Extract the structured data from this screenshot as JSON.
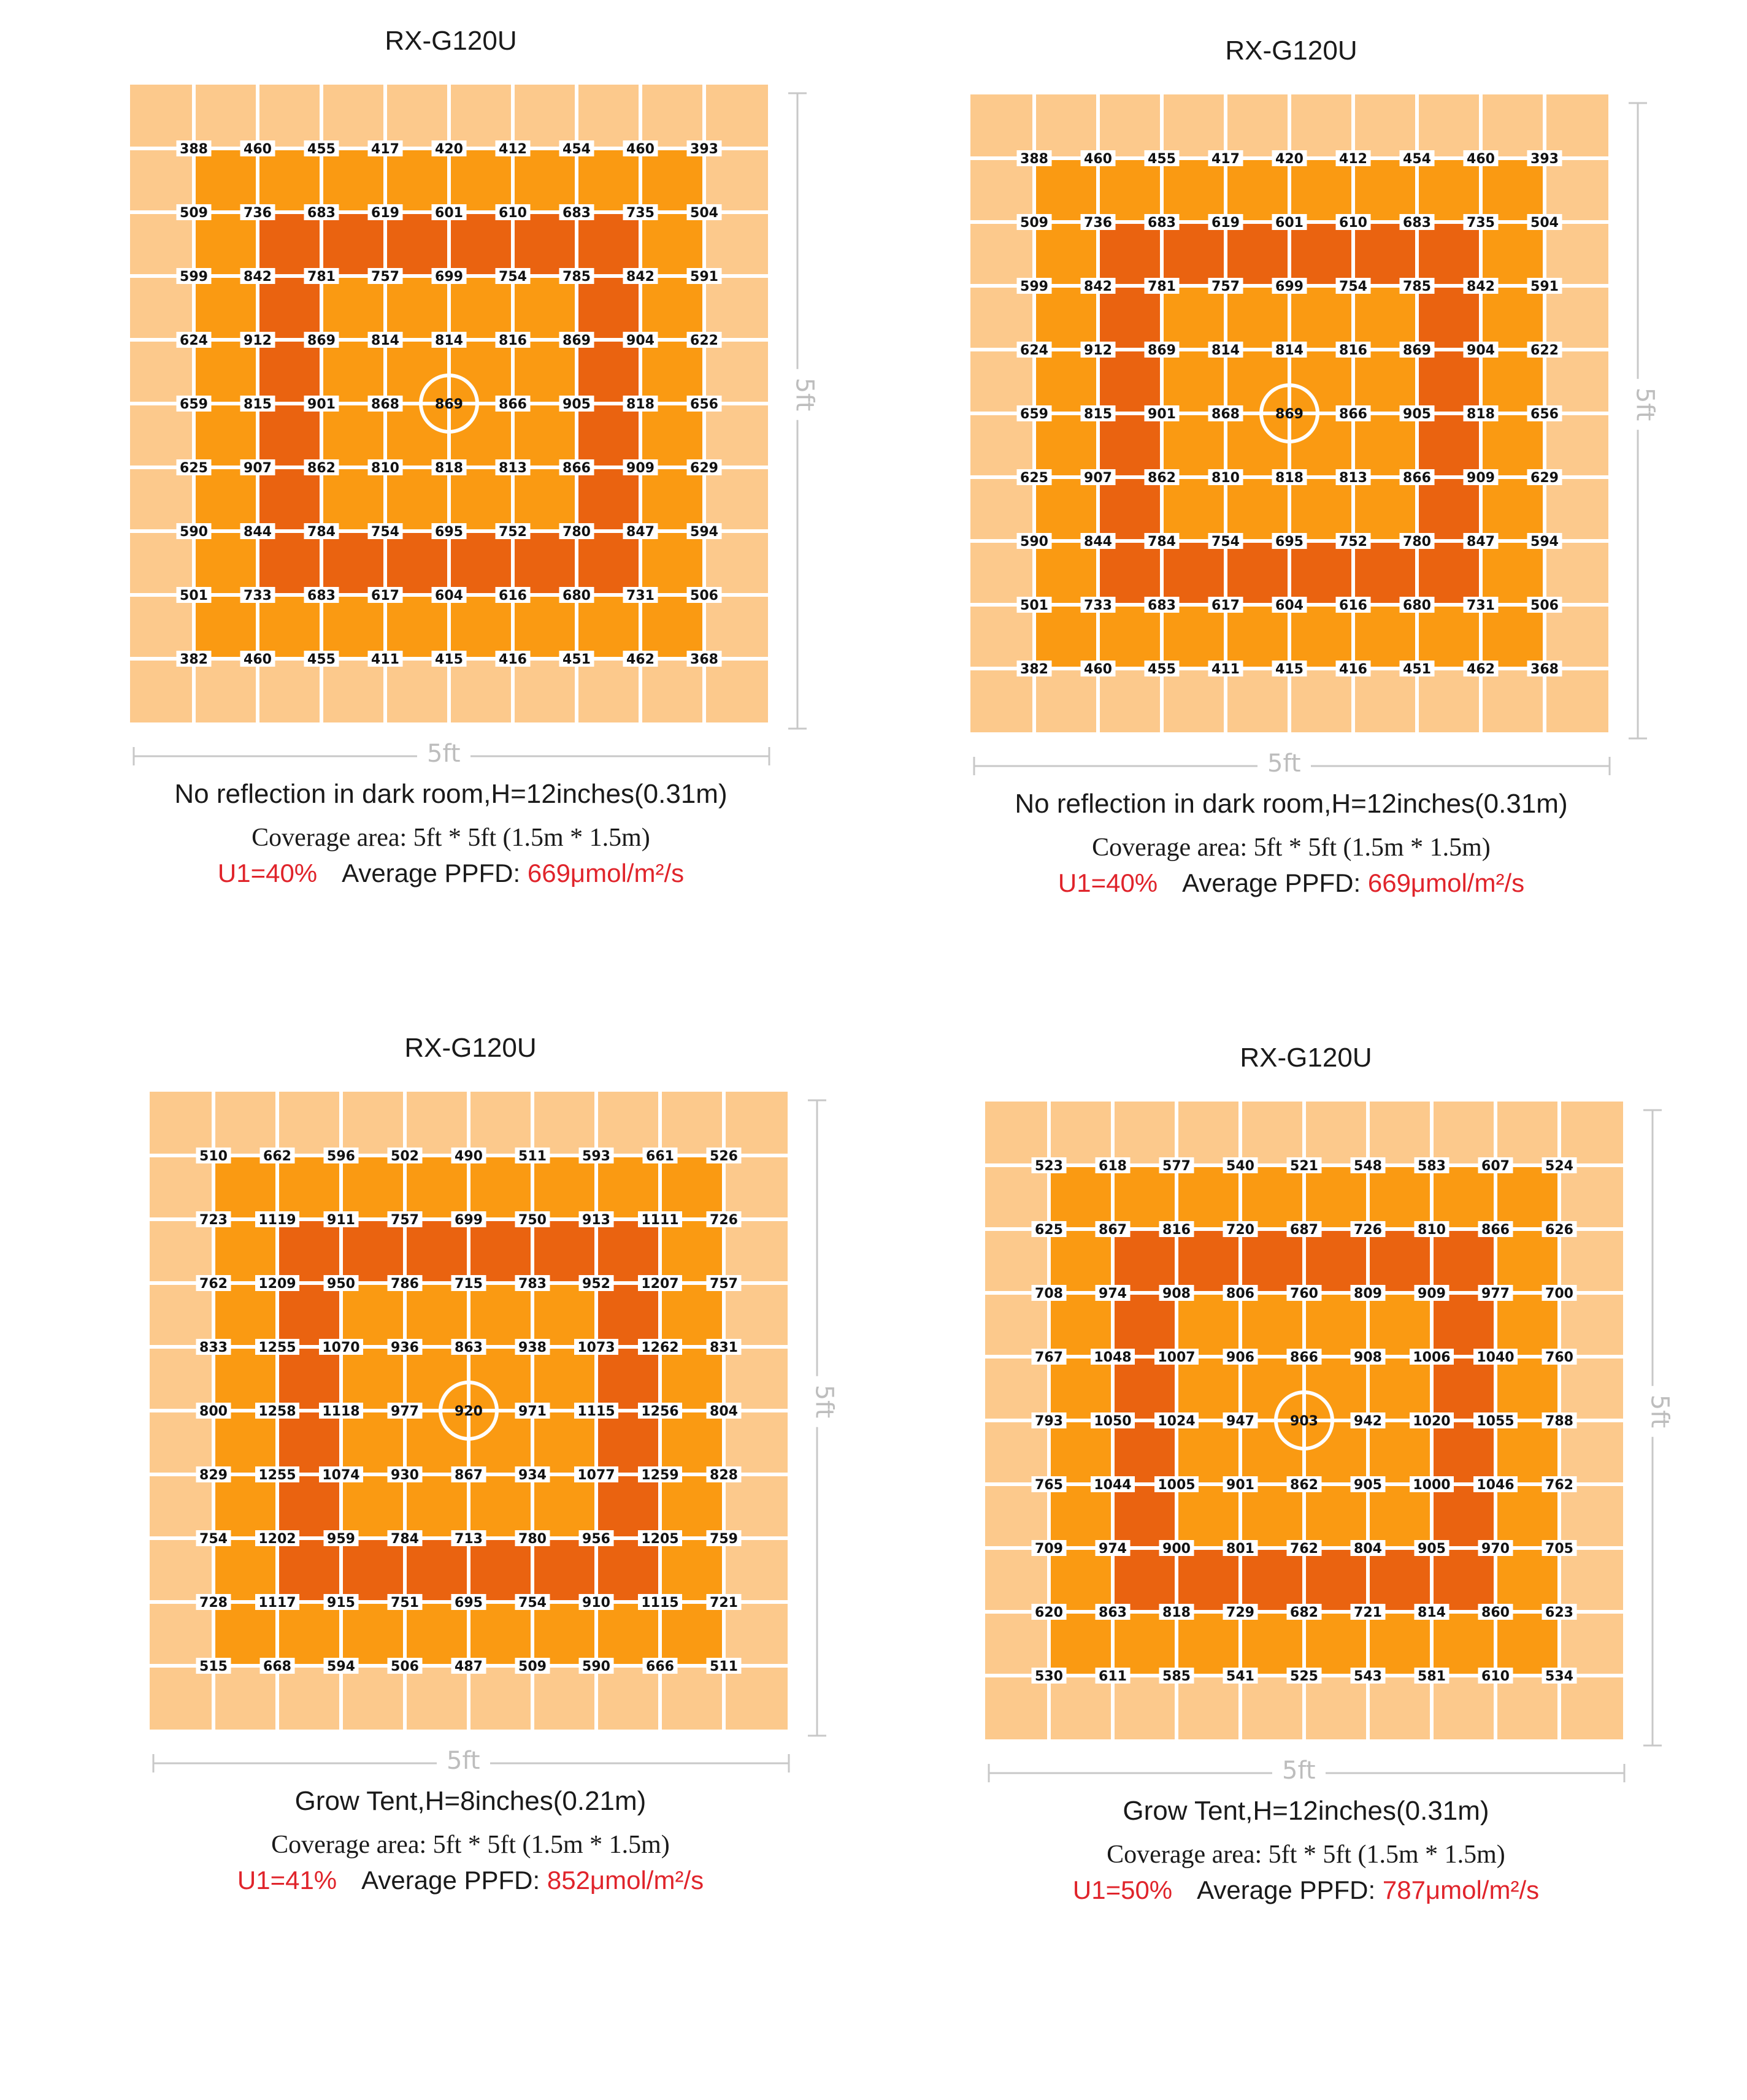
{
  "colors": {
    "light": "#FCC98C",
    "mid": "#FA9A12",
    "dark": "#EA6310",
    "grid_line": "#FFFFFF",
    "highlight": "#E0242B"
  },
  "chart_data": [
    {
      "type": "heatmap",
      "title": "RX-G120U",
      "x_dimension": "5ft",
      "y_dimension": "5ft",
      "condition": "No reflection in dark room,H=12inches(0.31m)",
      "coverage": "Coverage area: 5ft * 5ft (1.5m * 1.5m)",
      "ui_label": "U1=40%",
      "avg_label": "Average PPFD: ",
      "avg_value": "669μmol/m²/s",
      "center_marked": true,
      "values": [
        [
          388,
          460,
          455,
          417,
          420,
          412,
          454,
          460,
          393
        ],
        [
          509,
          736,
          683,
          619,
          601,
          610,
          683,
          735,
          504
        ],
        [
          599,
          842,
          781,
          757,
          699,
          754,
          785,
          842,
          591
        ],
        [
          624,
          912,
          869,
          814,
          814,
          816,
          869,
          904,
          622
        ],
        [
          659,
          815,
          901,
          868,
          869,
          866,
          905,
          818,
          656
        ],
        [
          625,
          907,
          862,
          810,
          818,
          813,
          866,
          909,
          629
        ],
        [
          590,
          844,
          784,
          754,
          695,
          752,
          780,
          847,
          594
        ],
        [
          501,
          733,
          683,
          617,
          604,
          616,
          680,
          731,
          506
        ],
        [
          382,
          460,
          455,
          411,
          415,
          416,
          451,
          462,
          368
        ]
      ]
    },
    {
      "type": "heatmap",
      "title": "RX-G120U",
      "x_dimension": "5ft",
      "y_dimension": "5ft",
      "condition": "No reflection in dark room,H=12inches(0.31m)",
      "coverage": "Coverage area: 5ft * 5ft (1.5m * 1.5m)",
      "ui_label": "U1=40%",
      "avg_label": "Average PPFD: ",
      "avg_value": "669μmol/m²/s",
      "center_marked": true,
      "values": [
        [
          388,
          460,
          455,
          417,
          420,
          412,
          454,
          460,
          393
        ],
        [
          509,
          736,
          683,
          619,
          601,
          610,
          683,
          735,
          504
        ],
        [
          599,
          842,
          781,
          757,
          699,
          754,
          785,
          842,
          591
        ],
        [
          624,
          912,
          869,
          814,
          814,
          816,
          869,
          904,
          622
        ],
        [
          659,
          815,
          901,
          868,
          869,
          866,
          905,
          818,
          656
        ],
        [
          625,
          907,
          862,
          810,
          818,
          813,
          866,
          909,
          629
        ],
        [
          590,
          844,
          784,
          754,
          695,
          752,
          780,
          847,
          594
        ],
        [
          501,
          733,
          683,
          617,
          604,
          616,
          680,
          731,
          506
        ],
        [
          382,
          460,
          455,
          411,
          415,
          416,
          451,
          462,
          368
        ]
      ]
    },
    {
      "type": "heatmap",
      "title": "RX-G120U",
      "x_dimension": "5ft",
      "y_dimension": "5ft",
      "condition": "Grow Tent,H=8inches(0.21m)",
      "coverage": "Coverage area: 5ft * 5ft (1.5m * 1.5m)",
      "ui_label": "U1=41%",
      "avg_label": "Average PPFD: ",
      "avg_value": "852μmol/m²/s",
      "center_marked": true,
      "values": [
        [
          510,
          662,
          596,
          502,
          490,
          511,
          593,
          661,
          526
        ],
        [
          723,
          1119,
          911,
          757,
          699,
          750,
          913,
          1111,
          726
        ],
        [
          762,
          1209,
          950,
          786,
          715,
          783,
          952,
          1207,
          757
        ],
        [
          833,
          1255,
          1070,
          936,
          863,
          938,
          1073,
          1262,
          831
        ],
        [
          800,
          1258,
          1118,
          977,
          920,
          971,
          1115,
          1256,
          804
        ],
        [
          829,
          1255,
          1074,
          930,
          867,
          934,
          1077,
          1259,
          828
        ],
        [
          754,
          1202,
          959,
          784,
          713,
          780,
          956,
          1205,
          759
        ],
        [
          728,
          1117,
          915,
          751,
          695,
          754,
          910,
          1115,
          721
        ],
        [
          515,
          668,
          594,
          506,
          487,
          509,
          590,
          666,
          511
        ]
      ]
    },
    {
      "type": "heatmap",
      "title": "RX-G120U",
      "x_dimension": "5ft",
      "y_dimension": "5ft",
      "condition": "Grow Tent,H=12inches(0.31m)",
      "coverage": "Coverage area: 5ft * 5ft (1.5m * 1.5m)",
      "ui_label": "U1=50%",
      "avg_label": "Average PPFD: ",
      "avg_value": "787μmol/m²/s",
      "center_marked": true,
      "values": [
        [
          523,
          618,
          577,
          540,
          521,
          548,
          583,
          607,
          524
        ],
        [
          625,
          867,
          816,
          720,
          687,
          726,
          810,
          866,
          626
        ],
        [
          708,
          974,
          908,
          806,
          760,
          809,
          909,
          977,
          700
        ],
        [
          767,
          1048,
          1007,
          906,
          866,
          908,
          1006,
          1040,
          760
        ],
        [
          793,
          1050,
          1024,
          947,
          903,
          942,
          1020,
          1055,
          788
        ],
        [
          765,
          1044,
          1005,
          901,
          862,
          905,
          1000,
          1046,
          762
        ],
        [
          709,
          974,
          900,
          801,
          762,
          804,
          905,
          970,
          705
        ],
        [
          620,
          863,
          818,
          729,
          682,
          721,
          814,
          860,
          623
        ],
        [
          530,
          611,
          585,
          541,
          525,
          543,
          581,
          610,
          534
        ]
      ]
    }
  ]
}
